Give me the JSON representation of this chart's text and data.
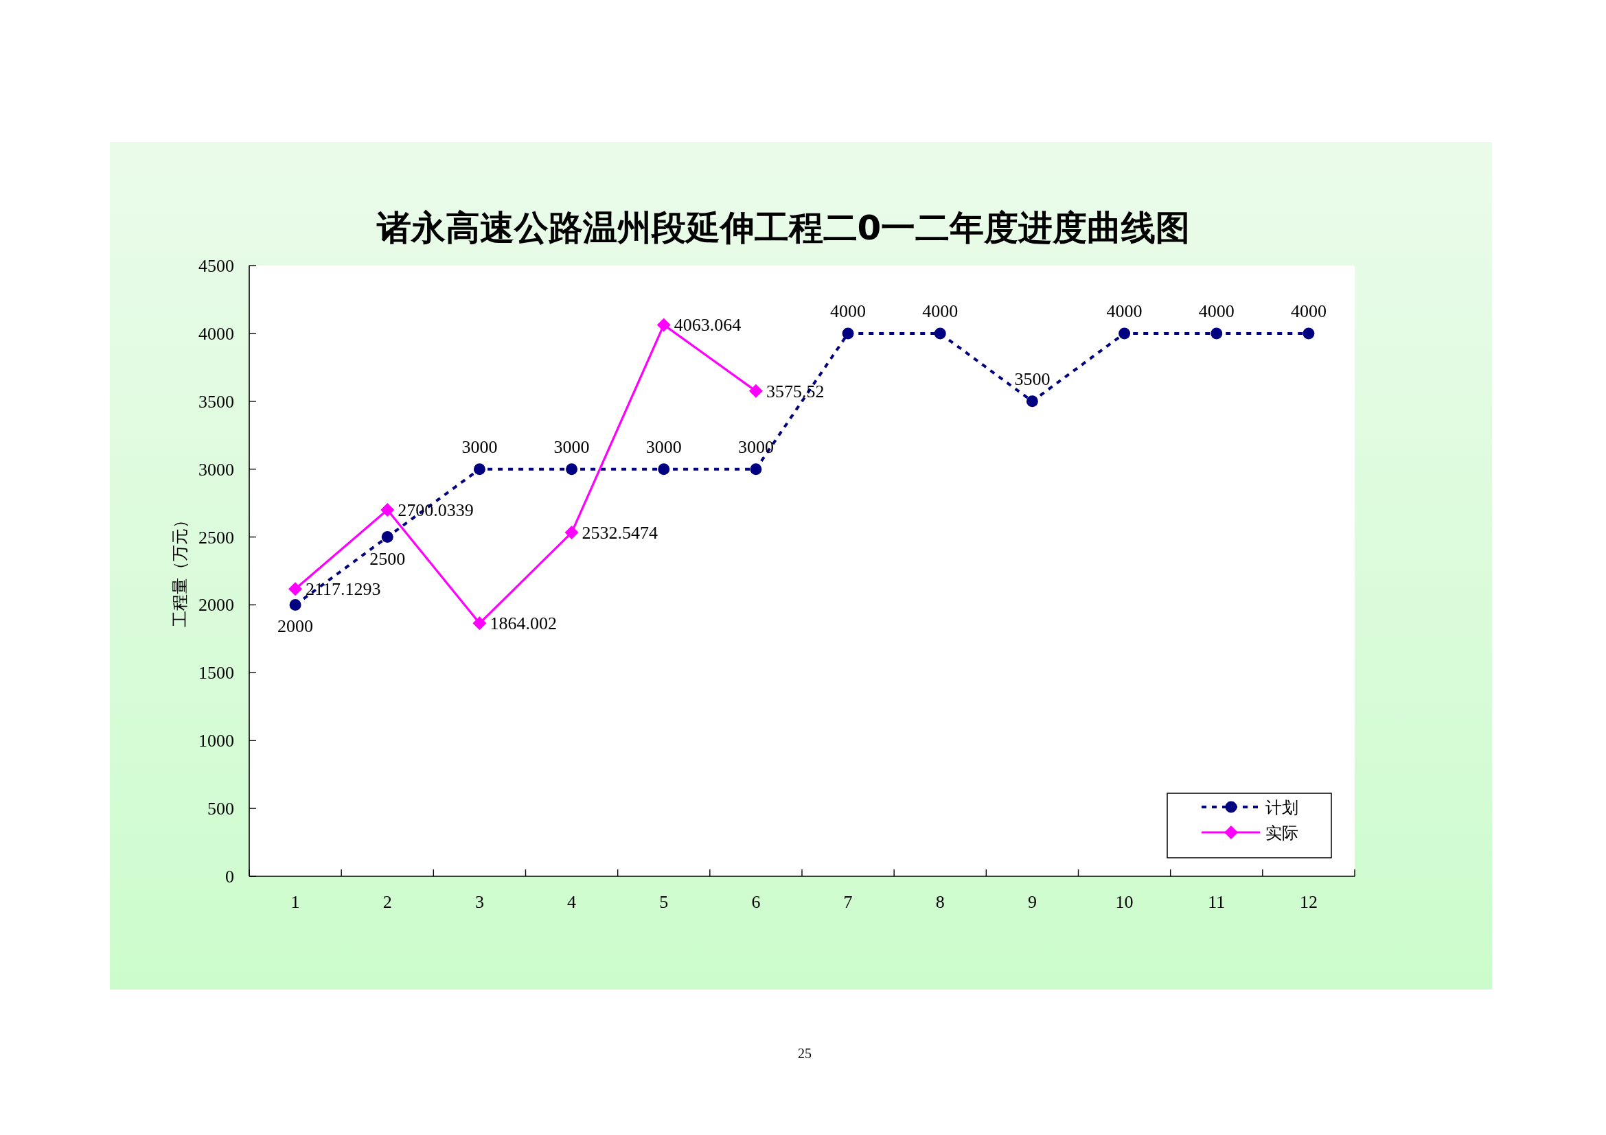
{
  "chart_data": {
    "type": "line",
    "title": "诸永高速公路温州段延伸工程二0一二年度进度曲线图",
    "ylabel": "工程量（万元）",
    "categories": [
      "1",
      "2",
      "3",
      "4",
      "5",
      "6",
      "7",
      "8",
      "9",
      "10",
      "11",
      "12"
    ],
    "series": [
      {
        "name": "计划",
        "color": "#000080",
        "marker": "circle",
        "line_style": "dashed",
        "values": [
          2000,
          2500,
          3000,
          3000,
          3000,
          3000,
          4000,
          4000,
          3500,
          4000,
          4000,
          4000
        ]
      },
      {
        "name": "实际",
        "color": "#ff00ff",
        "marker": "diamond",
        "line_style": "solid",
        "values": [
          2117.1293,
          2700.0339,
          1864.002,
          2532.5474,
          4063.064,
          3575.52,
          null,
          null,
          null,
          null,
          null,
          null
        ]
      }
    ],
    "ylim": [
      0,
      4500
    ],
    "yticks": [
      0,
      500,
      1000,
      1500,
      2000,
      2500,
      3000,
      3500,
      4000,
      4500
    ],
    "grid": false,
    "data_labels": true,
    "legend": "bottom right",
    "annotations": [
      "25"
    ]
  }
}
